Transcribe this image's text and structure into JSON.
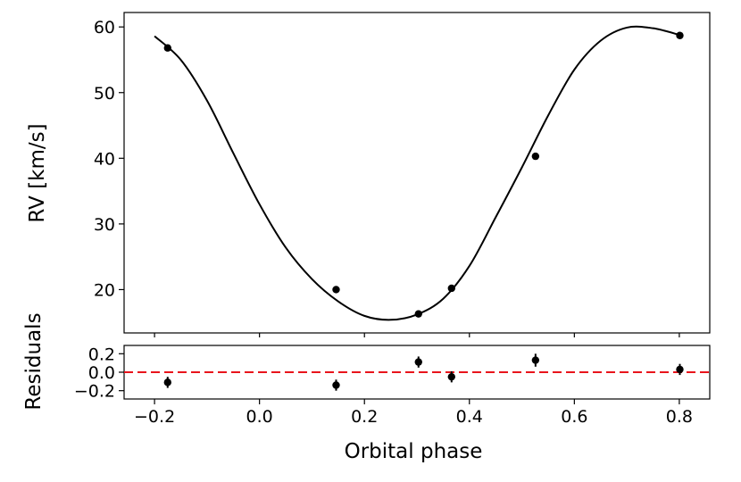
{
  "chart_data": [
    {
      "type": "scatter",
      "ylabel": "RV [km/s]",
      "xlim": [
        -0.258,
        0.858
      ],
      "ylim": [
        13.4,
        62.2
      ],
      "yticks": [
        20,
        30,
        40,
        50,
        60
      ],
      "ytick_labels": [
        "20",
        "30",
        "40",
        "50",
        "60"
      ],
      "xticks": [
        -0.2,
        0.0,
        0.2,
        0.4,
        0.6,
        0.8
      ],
      "grid": false,
      "model_curve": {
        "color": "#000000",
        "x": [
          -0.2,
          -0.15,
          -0.1,
          -0.05,
          0.0,
          0.05,
          0.1,
          0.15,
          0.2,
          0.25,
          0.3,
          0.35,
          0.4,
          0.45,
          0.5,
          0.55,
          0.6,
          0.65,
          0.7,
          0.75,
          0.8
        ],
        "y": [
          58.6,
          55.0,
          48.8,
          40.8,
          33.0,
          26.4,
          21.6,
          18.2,
          16.0,
          15.4,
          16.2,
          18.6,
          23.6,
          31.0,
          38.6,
          46.5,
          53.5,
          57.9,
          59.9,
          59.8,
          58.8
        ]
      },
      "series": [
        {
          "color": "#000000",
          "points": [
            {
              "x": -0.175,
              "y": 56.8
            },
            {
              "x": 0.146,
              "y": 20.0
            },
            {
              "x": 0.303,
              "y": 16.3
            },
            {
              "x": 0.366,
              "y": 20.2
            },
            {
              "x": 0.526,
              "y": 40.3
            },
            {
              "x": 0.801,
              "y": 58.7
            }
          ]
        }
      ]
    },
    {
      "type": "scatter",
      "ylabel": "Residuals",
      "xlabel": "Orbital phase",
      "xlim": [
        -0.258,
        0.858
      ],
      "ylim": [
        -0.29,
        0.29
      ],
      "yticks": [
        -0.2,
        0.0,
        0.2
      ],
      "ytick_labels": [
        "−0.2",
        "0.0",
        "0.2"
      ],
      "xticks": [
        -0.2,
        0.0,
        0.2,
        0.4,
        0.6,
        0.8
      ],
      "xtick_labels": [
        "−0.2",
        "0.0",
        "0.2",
        "0.4",
        "0.6",
        "0.8"
      ],
      "grid": false,
      "reference_line": {
        "y": 0.0,
        "color": "#e8141c",
        "style": "dashed"
      },
      "series": [
        {
          "color": "#000000",
          "points": [
            {
              "x": -0.175,
              "y": -0.11,
              "err": 0.06
            },
            {
              "x": 0.146,
              "y": -0.14,
              "err": 0.06
            },
            {
              "x": 0.303,
              "y": 0.11,
              "err": 0.06
            },
            {
              "x": 0.366,
              "y": -0.05,
              "err": 0.06
            },
            {
              "x": 0.526,
              "y": 0.13,
              "err": 0.07
            },
            {
              "x": 0.801,
              "y": 0.03,
              "err": 0.06
            }
          ]
        }
      ]
    }
  ]
}
